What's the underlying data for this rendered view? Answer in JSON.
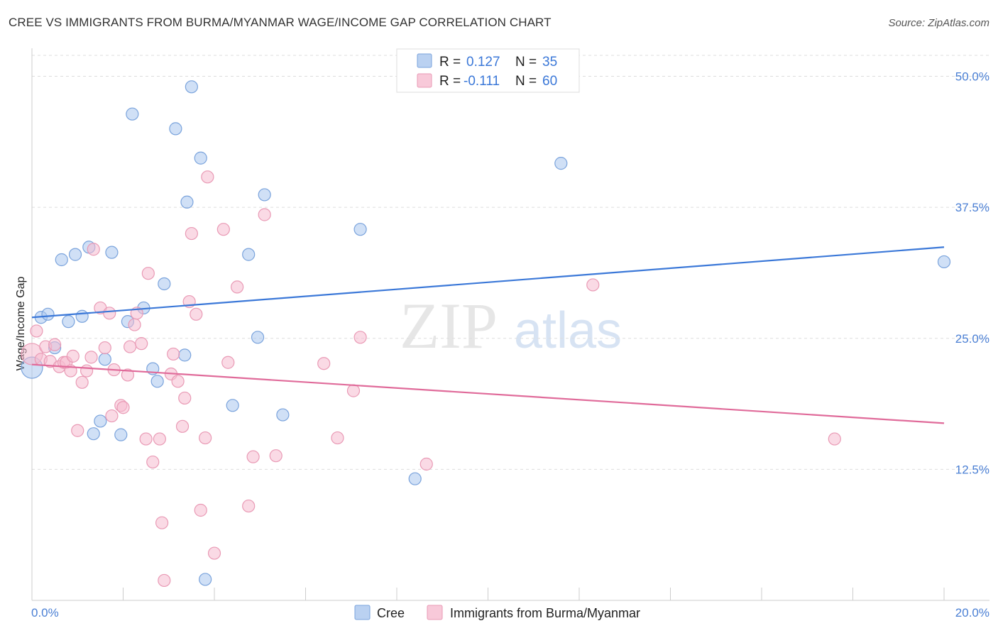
{
  "title": "CREE VS IMMIGRANTS FROM BURMA/MYANMAR WAGE/INCOME GAP CORRELATION CHART",
  "source": "Source: ZipAtlas.com",
  "watermark": {
    "zip": "ZIP",
    "atlas": "atlas"
  },
  "chart_data": {
    "type": "scatter",
    "xlabel": "",
    "ylabel": "Wage/Income Gap",
    "xlim": [
      0,
      20
    ],
    "ylim": [
      0,
      52
    ],
    "x_tick_labels": [
      "0.0%",
      "20.0%"
    ],
    "y_ticks": [
      {
        "value": 12.5,
        "label": "12.5%"
      },
      {
        "value": 25.0,
        "label": "25.0%"
      },
      {
        "value": 37.5,
        "label": "37.5%"
      },
      {
        "value": 50.0,
        "label": "50.0%"
      }
    ],
    "grid": true,
    "legend_position": "top-center",
    "series": [
      {
        "name": "Cree",
        "color": "#a9c6ee",
        "stroke": "#7aa3dc",
        "line_color": "#3b78d8",
        "R_label": "R =",
        "R": "0.127",
        "N_label": "N =",
        "N": "35",
        "trend": {
          "x": [
            0,
            20
          ],
          "y": [
            27.0,
            33.7
          ]
        },
        "points": [
          {
            "x": 0.0,
            "y": 22.2,
            "big": true
          },
          {
            "x": 0.2,
            "y": 27.0
          },
          {
            "x": 0.35,
            "y": 27.3
          },
          {
            "x": 0.5,
            "y": 24.1
          },
          {
            "x": 0.65,
            "y": 32.5
          },
          {
            "x": 0.8,
            "y": 26.6
          },
          {
            "x": 0.95,
            "y": 33.0
          },
          {
            "x": 1.1,
            "y": 27.1
          },
          {
            "x": 1.25,
            "y": 33.7
          },
          {
            "x": 1.35,
            "y": 15.9
          },
          {
            "x": 1.5,
            "y": 17.1
          },
          {
            "x": 1.6,
            "y": 23.0
          },
          {
            "x": 1.75,
            "y": 33.2
          },
          {
            "x": 1.95,
            "y": 15.8
          },
          {
            "x": 2.1,
            "y": 26.6
          },
          {
            "x": 2.2,
            "y": 46.4
          },
          {
            "x": 2.45,
            "y": 27.9
          },
          {
            "x": 2.65,
            "y": 22.1
          },
          {
            "x": 2.75,
            "y": 20.9
          },
          {
            "x": 2.9,
            "y": 30.2
          },
          {
            "x": 3.15,
            "y": 45.0
          },
          {
            "x": 3.35,
            "y": 23.4
          },
          {
            "x": 3.4,
            "y": 38.0
          },
          {
            "x": 3.5,
            "y": 49.0
          },
          {
            "x": 3.7,
            "y": 42.2
          },
          {
            "x": 3.8,
            "y": 2.0
          },
          {
            "x": 4.4,
            "y": 18.6
          },
          {
            "x": 4.75,
            "y": 33.0
          },
          {
            "x": 4.95,
            "y": 25.1
          },
          {
            "x": 5.1,
            "y": 38.7
          },
          {
            "x": 5.5,
            "y": 17.7
          },
          {
            "x": 7.2,
            "y": 35.4
          },
          {
            "x": 8.4,
            "y": 11.6
          },
          {
            "x": 11.6,
            "y": 41.7
          },
          {
            "x": 20.0,
            "y": 32.3
          }
        ]
      },
      {
        "name": "Immigrants from Burma/Myanmar",
        "color": "#f6bcd0",
        "stroke": "#e99ab5",
        "line_color": "#e06b9a",
        "R_label": "R =",
        "R": "-0.111",
        "N_label": "N =",
        "N": "60",
        "trend": {
          "x": [
            0,
            20
          ],
          "y": [
            22.5,
            16.9
          ]
        },
        "points": [
          {
            "x": 0.0,
            "y": 23.5,
            "big": true
          },
          {
            "x": 0.1,
            "y": 25.7
          },
          {
            "x": 0.2,
            "y": 23.0
          },
          {
            "x": 0.3,
            "y": 24.2
          },
          {
            "x": 0.4,
            "y": 22.8
          },
          {
            "x": 0.5,
            "y": 24.4
          },
          {
            "x": 0.6,
            "y": 22.3
          },
          {
            "x": 0.7,
            "y": 22.7
          },
          {
            "x": 0.75,
            "y": 22.7
          },
          {
            "x": 0.85,
            "y": 21.9
          },
          {
            "x": 0.9,
            "y": 23.3
          },
          {
            "x": 1.0,
            "y": 16.2
          },
          {
            "x": 1.1,
            "y": 20.8
          },
          {
            "x": 1.2,
            "y": 21.9
          },
          {
            "x": 1.3,
            "y": 23.2
          },
          {
            "x": 1.35,
            "y": 33.5
          },
          {
            "x": 1.5,
            "y": 27.9
          },
          {
            "x": 1.6,
            "y": 24.1
          },
          {
            "x": 1.7,
            "y": 27.4
          },
          {
            "x": 1.75,
            "y": 17.6
          },
          {
            "x": 1.8,
            "y": 22.0
          },
          {
            "x": 1.95,
            "y": 18.6
          },
          {
            "x": 2.0,
            "y": 18.4
          },
          {
            "x": 2.1,
            "y": 21.5
          },
          {
            "x": 2.15,
            "y": 24.2
          },
          {
            "x": 2.25,
            "y": 26.3
          },
          {
            "x": 2.3,
            "y": 27.4
          },
          {
            "x": 2.4,
            "y": 24.5
          },
          {
            "x": 2.5,
            "y": 15.4
          },
          {
            "x": 2.55,
            "y": 31.2
          },
          {
            "x": 2.65,
            "y": 13.2
          },
          {
            "x": 2.8,
            "y": 15.4
          },
          {
            "x": 2.85,
            "y": 7.4
          },
          {
            "x": 2.9,
            "y": 1.9
          },
          {
            "x": 3.05,
            "y": 21.6
          },
          {
            "x": 3.1,
            "y": 23.5
          },
          {
            "x": 3.2,
            "y": 20.9
          },
          {
            "x": 3.3,
            "y": 16.6
          },
          {
            "x": 3.35,
            "y": 19.3
          },
          {
            "x": 3.45,
            "y": 28.5
          },
          {
            "x": 3.5,
            "y": 35.0
          },
          {
            "x": 3.6,
            "y": 27.3
          },
          {
            "x": 3.7,
            "y": 8.6
          },
          {
            "x": 3.8,
            "y": 15.5
          },
          {
            "x": 3.85,
            "y": 40.4
          },
          {
            "x": 4.0,
            "y": 4.5
          },
          {
            "x": 4.2,
            "y": 35.4
          },
          {
            "x": 4.3,
            "y": 22.7
          },
          {
            "x": 4.5,
            "y": 29.9
          },
          {
            "x": 4.75,
            "y": 9.0
          },
          {
            "x": 4.85,
            "y": 13.7
          },
          {
            "x": 5.1,
            "y": 36.8
          },
          {
            "x": 5.35,
            "y": 13.8
          },
          {
            "x": 6.4,
            "y": 22.6
          },
          {
            "x": 6.7,
            "y": 15.5
          },
          {
            "x": 7.2,
            "y": 25.1
          },
          {
            "x": 7.05,
            "y": 20.0
          },
          {
            "x": 8.65,
            "y": 13.0
          },
          {
            "x": 12.3,
            "y": 30.1
          },
          {
            "x": 17.6,
            "y": 15.4
          }
        ]
      }
    ]
  }
}
